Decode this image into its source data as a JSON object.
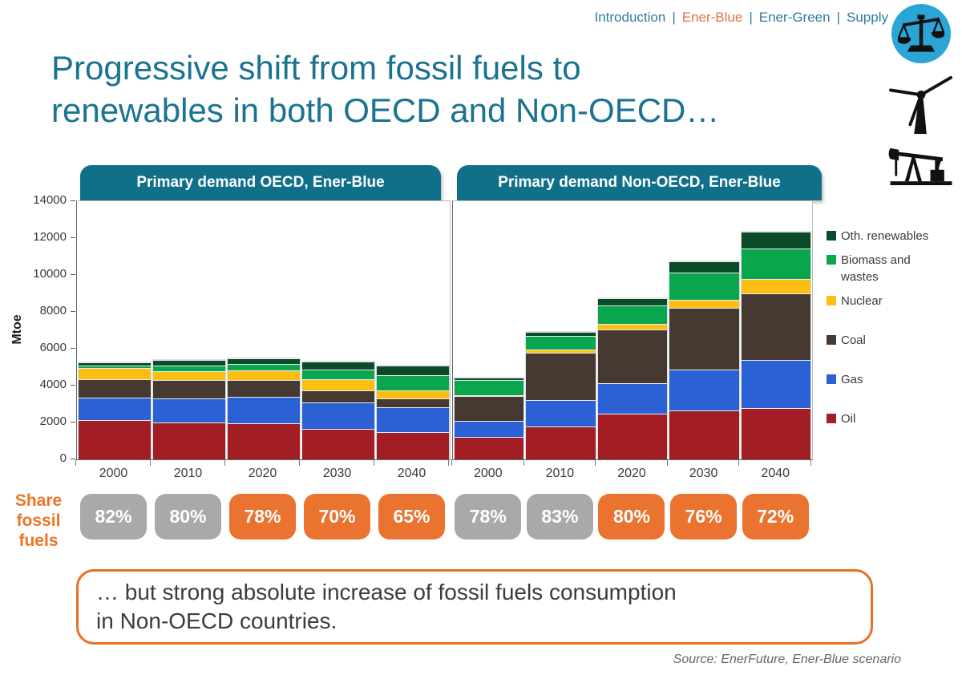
{
  "nav": {
    "items": [
      "Introduction",
      "Ener-Blue",
      "Ener-Green",
      "Supply"
    ],
    "active_item": "Ener-Blue",
    "separator": "|"
  },
  "title": {
    "line1": "Progressive shift from fossil fuels to",
    "line2": "renewables in both OECD and Non-OECD…"
  },
  "icons": {
    "top_right": [
      "balance-scales",
      "wind-turbine",
      "oil-pumpjack"
    ]
  },
  "colors": {
    "nav_link": "#2E7E9B",
    "nav_active": "#E0714D",
    "title_text": "#1A7391",
    "header_bg": "#10708A",
    "header_text": "#FFFFFF",
    "icon_circle_bg": "#2AA5D5",
    "axis_text": "#3A3A3A",
    "badge_gray": "#A9A9A9",
    "badge_orange": "#EA7330",
    "badge_text": "#FFFFFF",
    "share_label": "#EE7425",
    "callout_border": "#E87025",
    "callout_text": "#3C3C3C",
    "source_text": "#666666"
  },
  "chart_data": [
    {
      "type": "bar",
      "stacked": true,
      "title": "Primary demand OECD, Ener-Blue",
      "ylabel": "Mtoe",
      "ylim": [
        0,
        14000
      ],
      "yticks": [
        0,
        2000,
        4000,
        6000,
        8000,
        10000,
        12000,
        14000
      ],
      "grid": false,
      "categories": [
        "2000",
        "2010",
        "2020",
        "2030",
        "2040"
      ],
      "series": [
        {
          "name": "Oil",
          "color": "#A21E24",
          "values": [
            2150,
            2000,
            1950,
            1650,
            1500
          ]
        },
        {
          "name": "Gas",
          "color": "#2B61D5",
          "values": [
            1200,
            1300,
            1420,
            1450,
            1330
          ]
        },
        {
          "name": "Coal",
          "color": "#453931",
          "values": [
            1000,
            1020,
            920,
            630,
            490
          ]
        },
        {
          "name": "Nuclear",
          "color": "#FCBE12",
          "values": [
            600,
            480,
            540,
            600,
            430
          ]
        },
        {
          "name": "Biomass and wastes",
          "color": "#0AA64E",
          "values": [
            120,
            290,
            330,
            520,
            800
          ]
        },
        {
          "name": "Oth. renewables",
          "color": "#0B4B29",
          "values": [
            180,
            300,
            300,
            450,
            550
          ]
        }
      ]
    },
    {
      "type": "bar",
      "stacked": true,
      "title": "Primary demand Non-OECD, Ener-Blue",
      "ylabel": "Mtoe",
      "ylim": [
        0,
        14000
      ],
      "yticks": [
        0,
        2000,
        4000,
        6000,
        8000,
        10000,
        12000,
        14000
      ],
      "grid": false,
      "legend_position": "right",
      "categories": [
        "2000",
        "2010",
        "2020",
        "2030",
        "2040"
      ],
      "series": [
        {
          "name": "Oil",
          "color": "#A21E24",
          "values": [
            1200,
            1800,
            2500,
            2650,
            2800
          ]
        },
        {
          "name": "Gas",
          "color": "#2B61D5",
          "values": [
            900,
            1400,
            1650,
            2200,
            2600
          ]
        },
        {
          "name": "Coal",
          "color": "#453931",
          "values": [
            1350,
            2600,
            2900,
            3350,
            3600
          ]
        },
        {
          "name": "Nuclear",
          "color": "#FCBE12",
          "values": [
            30,
            150,
            300,
            450,
            800
          ]
        },
        {
          "name": "Biomass and wastes",
          "color": "#0AA64E",
          "values": [
            800,
            750,
            1000,
            1500,
            1650
          ]
        },
        {
          "name": "Oth. renewables",
          "color": "#0B4B29",
          "values": [
            150,
            200,
            400,
            600,
            900
          ]
        }
      ]
    }
  ],
  "share": {
    "label_lines": [
      "Share",
      "fossil",
      "fuels"
    ],
    "oecd": [
      {
        "text": "82%",
        "orange": false
      },
      {
        "text": "80%",
        "orange": false
      },
      {
        "text": "78%",
        "orange": true
      },
      {
        "text": "70%",
        "orange": true
      },
      {
        "text": "65%",
        "orange": true
      }
    ],
    "non_oecd": [
      {
        "text": "78%",
        "orange": false
      },
      {
        "text": "83%",
        "orange": false
      },
      {
        "text": "80%",
        "orange": true
      },
      {
        "text": "76%",
        "orange": true
      },
      {
        "text": "72%",
        "orange": true
      }
    ]
  },
  "callout": {
    "line1": "… but strong absolute increase of fossil fuels consumption",
    "line2": "in Non-OECD countries."
  },
  "source": "Source: EnerFuture, Ener-Blue scenario"
}
